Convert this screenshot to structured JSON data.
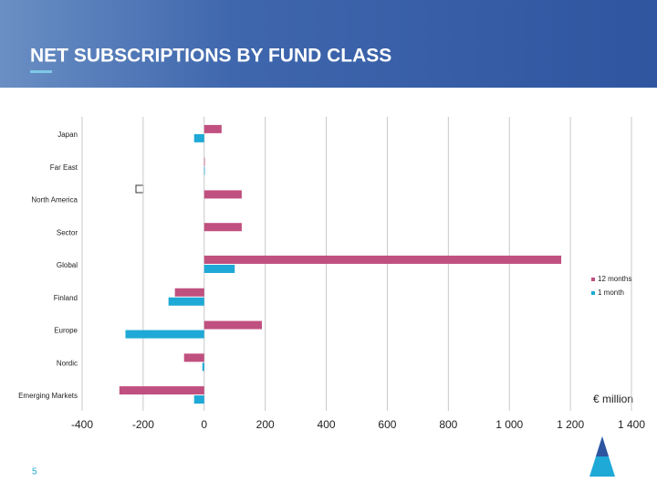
{
  "chart_data": {
    "type": "hbar",
    "title": "NET SUBSCRIPTIONS BY FUND CLASS",
    "categories": [
      "Japan",
      "Far East",
      "North America",
      "Sector",
      "Global",
      "Finland",
      "Europe",
      "Nordic",
      "Emerging Markets"
    ],
    "series": [
      {
        "name": "12 months",
        "color": "#c0507f",
        "values": [
          57,
          2,
          123,
          123,
          1170,
          -96,
          189,
          -66,
          -278
        ]
      },
      {
        "name": "1 month",
        "color": "#1fa9d6",
        "values": [
          -33,
          2,
          0,
          0,
          100,
          -117,
          -258,
          -6,
          -33
        ]
      }
    ],
    "x_label": "€ million",
    "xlim": [
      -400,
      1400
    ],
    "xticks": [
      -400,
      -200,
      0,
      200,
      400,
      600,
      800,
      {
        "value": 1000,
        "label": "1 000"
      },
      {
        "value": 1200,
        "label": "1 200"
      },
      {
        "value": 1400,
        "label": "1 400"
      }
    ],
    "grid": true,
    "legend": "right"
  },
  "page_number": "5"
}
